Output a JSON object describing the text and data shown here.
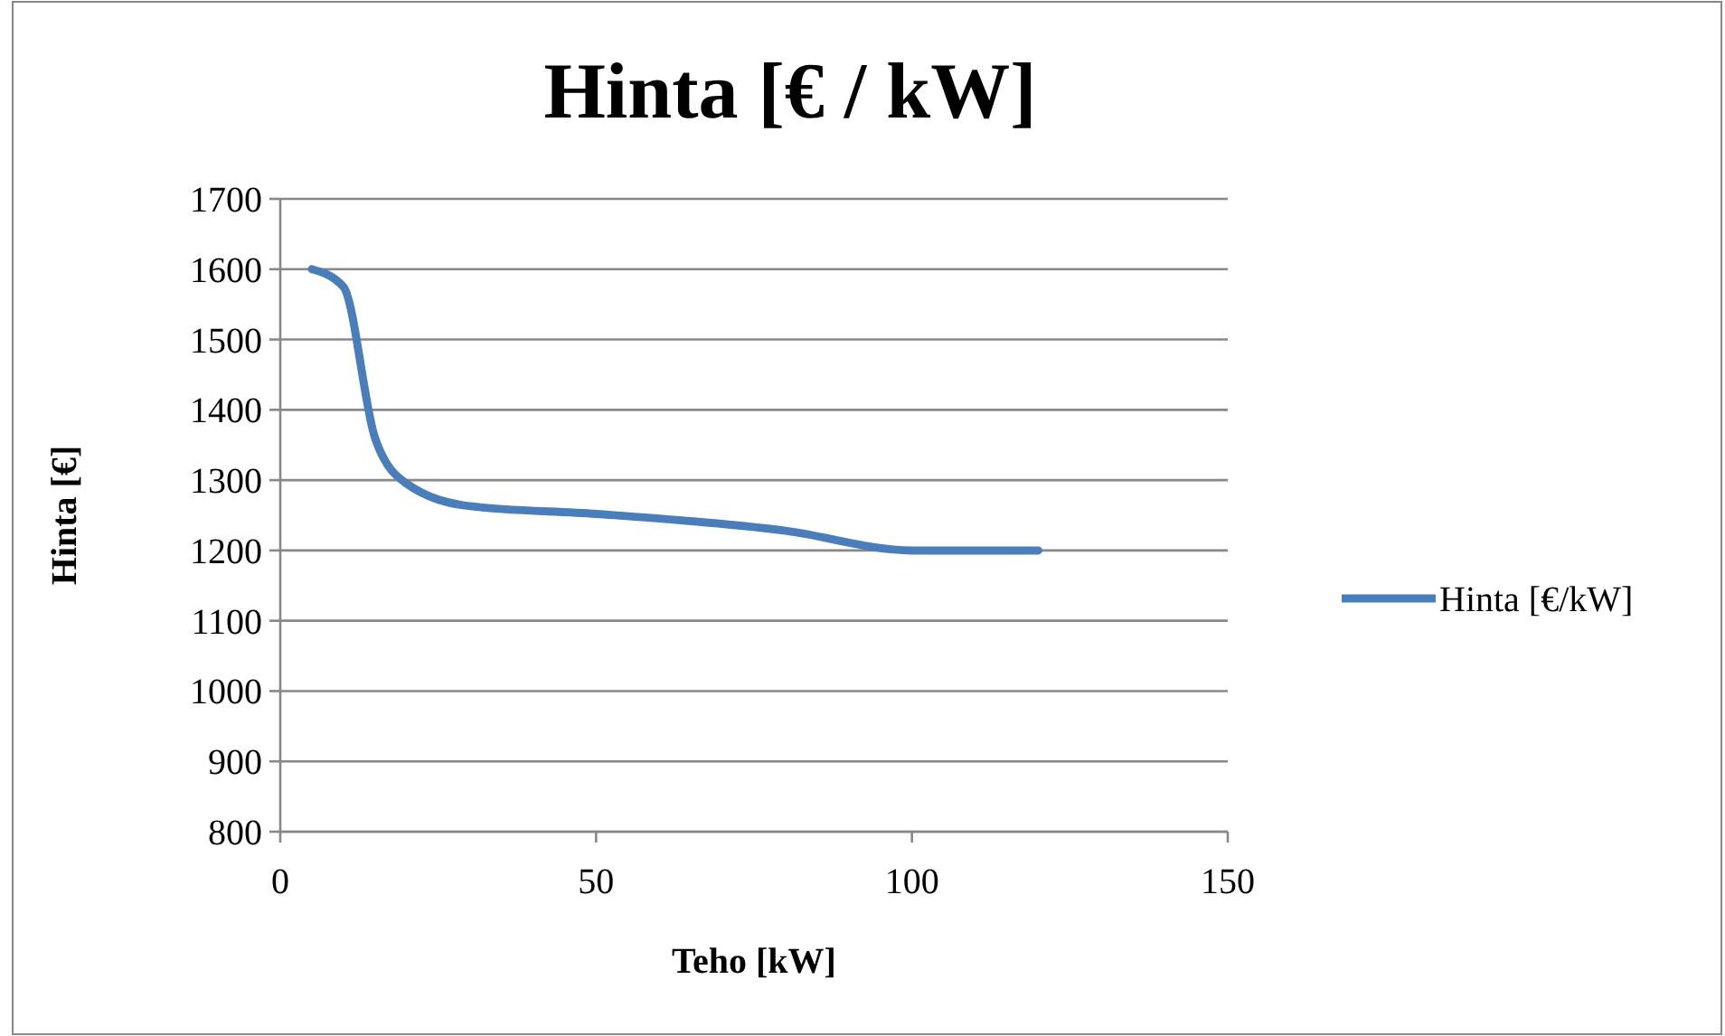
{
  "chart_data": {
    "type": "line",
    "title": "Hinta [€ / kW]",
    "xlabel": "Teho [kW]",
    "ylabel": "Hinta [€]",
    "x": [
      5,
      10,
      15,
      20,
      30,
      50,
      80,
      100,
      120
    ],
    "series": [
      {
        "name": "Hinta [€/kW]",
        "color": "#4a7ebb",
        "values": [
          1600,
          1575,
          1360,
          1295,
          1263,
          1252,
          1228,
          1200,
          1200
        ]
      }
    ],
    "xlim": [
      0,
      150
    ],
    "xticks": [
      0,
      50,
      100,
      150
    ],
    "ylim": [
      800,
      1700
    ],
    "yticks": [
      800,
      900,
      1000,
      1100,
      1200,
      1300,
      1400,
      1500,
      1600,
      1700
    ],
    "grid": "y",
    "legend": "right",
    "marker": "none",
    "line_style": "solid"
  }
}
